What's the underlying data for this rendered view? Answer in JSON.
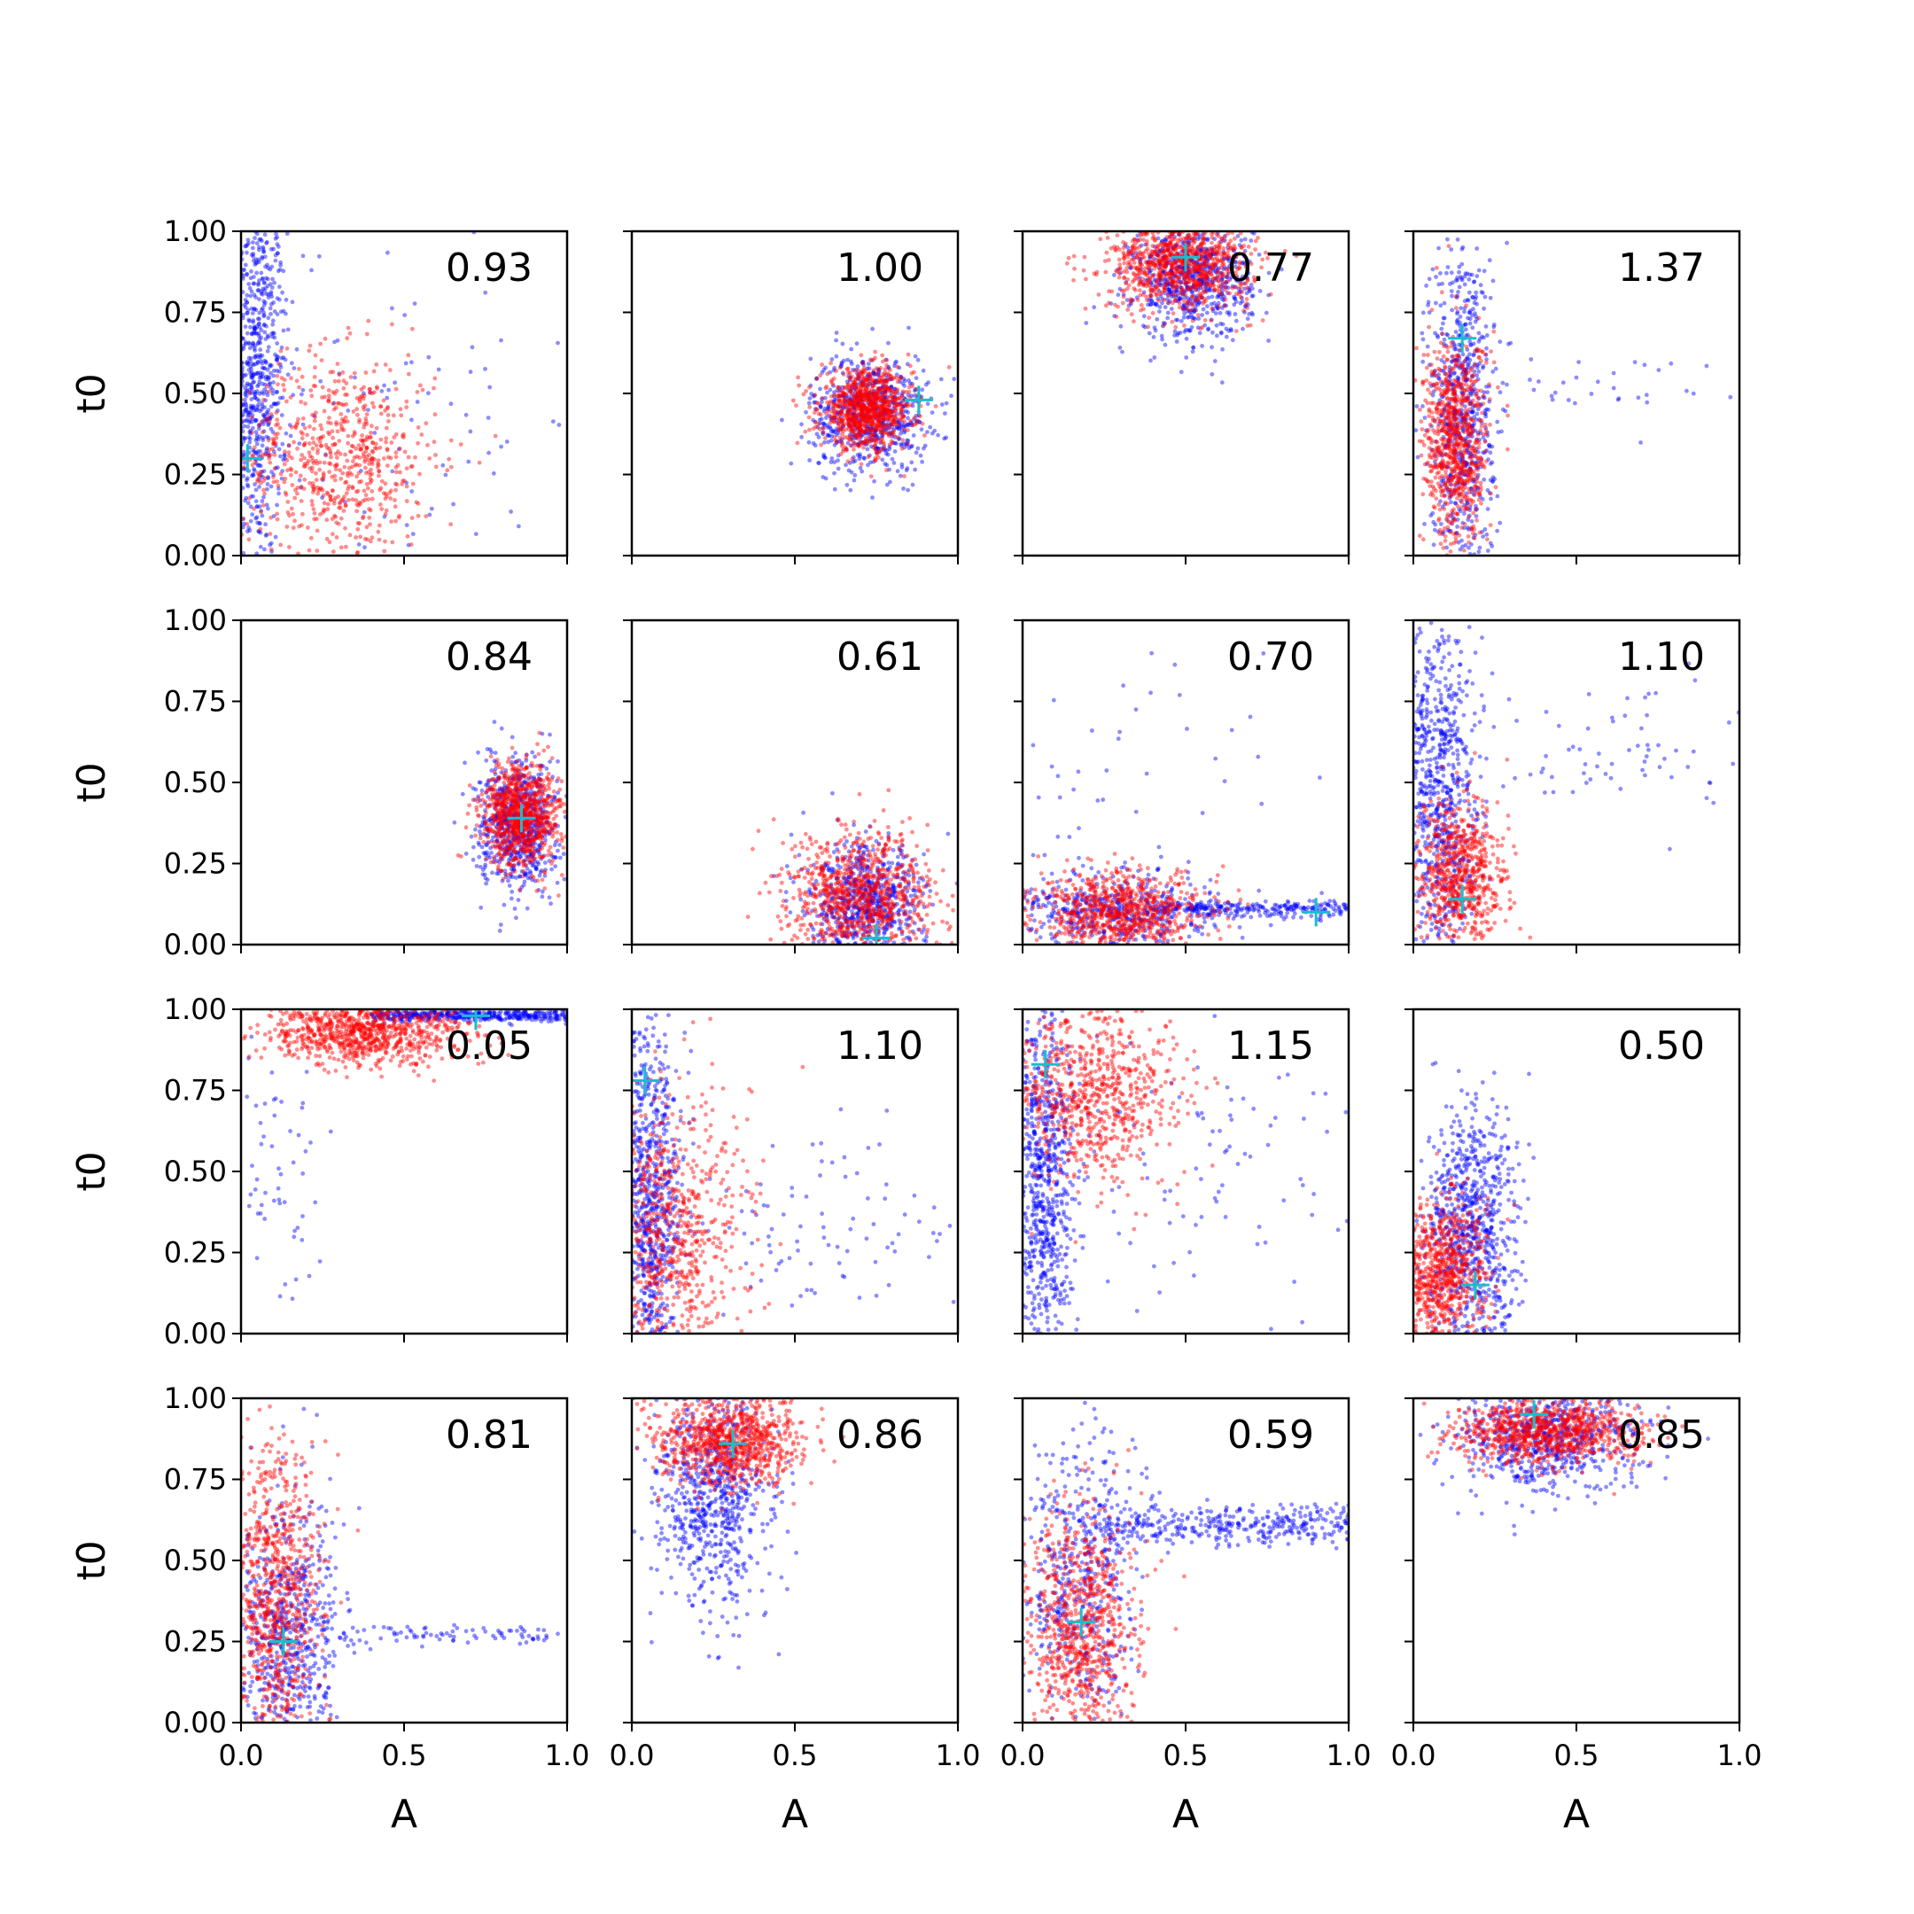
{
  "chart_data": {
    "type": "scatter",
    "layout": "4x4 grid of subplots",
    "xlabel": "A",
    "ylabel": "t0",
    "xlim": [
      0,
      1
    ],
    "ylim": [
      0,
      1
    ],
    "x_ticks": [
      "0.0",
      "0.5",
      "1.0"
    ],
    "y_ticks": [
      "0.00",
      "0.25",
      "0.50",
      "0.75",
      "1.00"
    ],
    "grid": false,
    "legend": "none",
    "colors": {
      "blue": "#0000ff",
      "red": "#ff0000",
      "marker": "#17becf"
    },
    "panels": [
      {
        "score": "0.93",
        "marker": [
          0.02,
          0.3
        ],
        "red": {
          "cx": 0.3,
          "cy": 0.3,
          "sx": 0.15,
          "sy": 0.16,
          "n": 700
        },
        "blue": {
          "cx": 0.04,
          "cy": 0.55,
          "sx": 0.05,
          "sy": 0.28,
          "n": 800
        },
        "blue_sparse": {
          "cx": 0.45,
          "cy": 0.45,
          "sx": 0.3,
          "sy": 0.3,
          "n": 100
        }
      },
      {
        "score": "1.00",
        "marker": [
          0.88,
          0.48
        ],
        "red": {
          "cx": 0.72,
          "cy": 0.45,
          "sx": 0.07,
          "sy": 0.06,
          "n": 900
        },
        "blue": {
          "cx": 0.73,
          "cy": 0.44,
          "sx": 0.09,
          "sy": 0.09,
          "n": 700
        }
      },
      {
        "score": "0.77",
        "marker": [
          0.5,
          0.92
        ],
        "red": {
          "cx": 0.48,
          "cy": 0.9,
          "sx": 0.11,
          "sy": 0.07,
          "n": 900
        },
        "blue": {
          "cx": 0.52,
          "cy": 0.85,
          "sx": 0.09,
          "sy": 0.09,
          "n": 700
        }
      },
      {
        "score": "1.37",
        "marker": [
          0.15,
          0.67
        ],
        "red": {
          "cx": 0.13,
          "cy": 0.35,
          "sx": 0.05,
          "sy": 0.16,
          "n": 800
        },
        "blue": {
          "cx": 0.15,
          "cy": 0.45,
          "sx": 0.05,
          "sy": 0.28,
          "n": 700
        },
        "blue_sparse": {
          "cx": 0.45,
          "cy": 0.52,
          "sx": 0.25,
          "sy": 0.05,
          "n": 40
        }
      },
      {
        "score": "0.84",
        "marker": [
          0.86,
          0.39
        ],
        "red": {
          "cx": 0.86,
          "cy": 0.4,
          "sx": 0.06,
          "sy": 0.08,
          "n": 900
        },
        "blue": {
          "cx": 0.85,
          "cy": 0.37,
          "sx": 0.06,
          "sy": 0.1,
          "n": 700
        }
      },
      {
        "score": "0.61",
        "marker": [
          0.75,
          0.02
        ],
        "red": {
          "cx": 0.7,
          "cy": 0.15,
          "sx": 0.11,
          "sy": 0.1,
          "n": 900
        },
        "blue": {
          "cx": 0.72,
          "cy": 0.12,
          "sx": 0.09,
          "sy": 0.09,
          "n": 700
        }
      },
      {
        "score": "0.70",
        "marker": [
          0.9,
          0.1
        ],
        "red": {
          "cx": 0.3,
          "cy": 0.1,
          "sx": 0.13,
          "sy": 0.06,
          "n": 800
        },
        "blue": {
          "cx": 0.28,
          "cy": 0.1,
          "sx": 0.16,
          "sy": 0.06,
          "n": 500
        },
        "blue_band": {
          "x0": 0.4,
          "x1": 1.0,
          "y": 0.11,
          "sy": 0.012,
          "n": 260
        },
        "blue_sparse": {
          "cx": 0.3,
          "cy": 0.45,
          "sx": 0.25,
          "sy": 0.25,
          "n": 60
        }
      },
      {
        "score": "1.10",
        "marker": [
          0.15,
          0.14
        ],
        "red": {
          "cx": 0.14,
          "cy": 0.2,
          "sx": 0.07,
          "sy": 0.12,
          "n": 700
        },
        "blue": {
          "cx": 0.08,
          "cy": 0.45,
          "sx": 0.06,
          "sy": 0.28,
          "n": 800
        },
        "blue_sparse": {
          "cx": 0.6,
          "cy": 0.6,
          "sx": 0.22,
          "sy": 0.12,
          "n": 70
        }
      },
      {
        "score": "0.05",
        "marker": [
          0.72,
          0.98
        ],
        "red": {
          "cx": 0.38,
          "cy": 0.93,
          "sx": 0.16,
          "sy": 0.05,
          "n": 900
        },
        "blue_band": {
          "x0": 0.4,
          "x1": 1.0,
          "y": 0.98,
          "sy": 0.01,
          "n": 400
        },
        "blue_sparse": {
          "cx": 0.12,
          "cy": 0.45,
          "sx": 0.07,
          "sy": 0.25,
          "n": 60
        }
      },
      {
        "score": "1.10",
        "marker": [
          0.04,
          0.78
        ],
        "red": {
          "cx": 0.12,
          "cy": 0.3,
          "sx": 0.12,
          "sy": 0.22,
          "n": 800
        },
        "blue": {
          "cx": 0.05,
          "cy": 0.4,
          "sx": 0.05,
          "sy": 0.28,
          "n": 800
        },
        "blue_sparse": {
          "cx": 0.6,
          "cy": 0.35,
          "sx": 0.25,
          "sy": 0.15,
          "n": 100
        }
      },
      {
        "score": "1.15",
        "marker": [
          0.07,
          0.83
        ],
        "red": {
          "cx": 0.2,
          "cy": 0.75,
          "sx": 0.14,
          "sy": 0.15,
          "n": 800
        },
        "blue": {
          "cx": 0.06,
          "cy": 0.45,
          "sx": 0.05,
          "sy": 0.28,
          "n": 800
        },
        "blue_sparse": {
          "cx": 0.55,
          "cy": 0.5,
          "sx": 0.25,
          "sy": 0.25,
          "n": 100
        }
      },
      {
        "score": "0.50",
        "marker": [
          0.19,
          0.15
        ],
        "red": {
          "cx": 0.08,
          "cy": 0.18,
          "sx": 0.07,
          "sy": 0.12,
          "n": 800
        },
        "blue": {
          "cx": 0.18,
          "cy": 0.3,
          "sx": 0.07,
          "sy": 0.2,
          "n": 800
        }
      },
      {
        "score": "0.81",
        "marker": [
          0.13,
          0.25
        ],
        "red": {
          "cx": 0.1,
          "cy": 0.4,
          "sx": 0.07,
          "sy": 0.22,
          "n": 800
        },
        "blue": {
          "cx": 0.15,
          "cy": 0.25,
          "sx": 0.08,
          "sy": 0.22,
          "n": 700
        },
        "blue_band": {
          "x0": 0.3,
          "x1": 1.0,
          "y": 0.27,
          "sy": 0.015,
          "n": 80
        }
      },
      {
        "score": "0.86",
        "marker": [
          0.31,
          0.86
        ],
        "red": {
          "cx": 0.3,
          "cy": 0.87,
          "sx": 0.11,
          "sy": 0.07,
          "n": 900
        },
        "blue": {
          "cx": 0.25,
          "cy": 0.7,
          "sx": 0.09,
          "sy": 0.17,
          "n": 700
        }
      },
      {
        "score": "0.59",
        "marker": [
          0.18,
          0.31
        ],
        "red": {
          "cx": 0.18,
          "cy": 0.3,
          "sx": 0.09,
          "sy": 0.18,
          "n": 800
        },
        "blue": {
          "cx": 0.18,
          "cy": 0.45,
          "sx": 0.09,
          "sy": 0.22,
          "n": 500
        },
        "blue_band": {
          "x0": 0.25,
          "x1": 1.0,
          "y": 0.61,
          "sy": 0.03,
          "n": 350
        }
      },
      {
        "score": "0.85",
        "marker": [
          0.37,
          0.95
        ],
        "red": {
          "cx": 0.4,
          "cy": 0.9,
          "sx": 0.14,
          "sy": 0.05,
          "n": 900
        },
        "blue": {
          "cx": 0.4,
          "cy": 0.88,
          "sx": 0.14,
          "sy": 0.08,
          "n": 700
        }
      }
    ]
  }
}
